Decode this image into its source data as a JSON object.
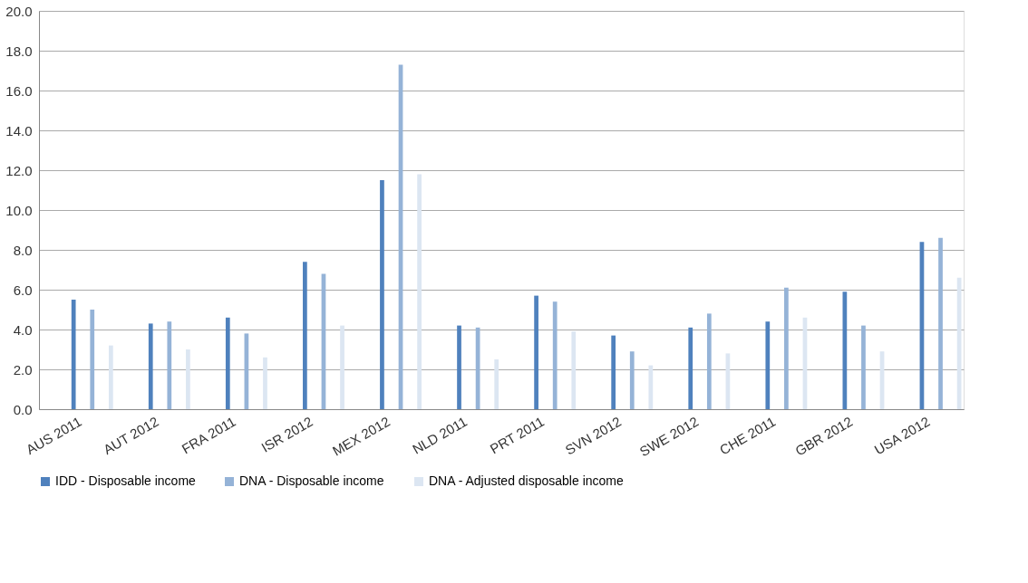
{
  "chart_data": {
    "type": "bar",
    "categories": [
      "AUS 2011",
      "AUT 2012",
      "FRA 2011",
      "ISR 2012",
      "MEX 2012",
      "NLD 2011",
      "PRT 2011",
      "SVN 2012",
      "SWE 2012",
      "CHE 2011",
      "GBR 2012",
      "USA 2012"
    ],
    "series": [
      {
        "name": "IDD - Disposable income",
        "color": "#4f81bd",
        "values": [
          5.5,
          4.3,
          4.6,
          7.4,
          11.5,
          4.2,
          5.7,
          3.7,
          4.1,
          4.4,
          5.9,
          8.4
        ]
      },
      {
        "name": "DNA - Disposable income",
        "color": "#95b3d7",
        "values": [
          5.0,
          4.4,
          3.8,
          6.8,
          17.3,
          4.1,
          5.4,
          2.9,
          4.8,
          6.1,
          4.2,
          8.6
        ]
      },
      {
        "name": "DNA - Adjusted disposable income",
        "color": "#dce6f2",
        "values": [
          3.2,
          3.0,
          2.6,
          4.2,
          11.8,
          2.5,
          3.9,
          2.2,
          2.8,
          4.6,
          2.9,
          6.6
        ]
      }
    ],
    "ylim": [
      0,
      20
    ],
    "yticks": [
      {
        "value": 0,
        "label": "0.0"
      },
      {
        "value": 2,
        "label": "2.0"
      },
      {
        "value": 4,
        "label": "4.0"
      },
      {
        "value": 6,
        "label": "6.0"
      },
      {
        "value": 8,
        "label": "8.0"
      },
      {
        "value": 10,
        "label": "10.0"
      },
      {
        "value": 12,
        "label": "12.0"
      },
      {
        "value": 14,
        "label": "14.0"
      },
      {
        "value": 16,
        "label": "16.0"
      },
      {
        "value": 18,
        "label": "18.0"
      },
      {
        "value": 20,
        "label": "20.0"
      }
    ],
    "grid": "y",
    "legend": "bottom"
  }
}
